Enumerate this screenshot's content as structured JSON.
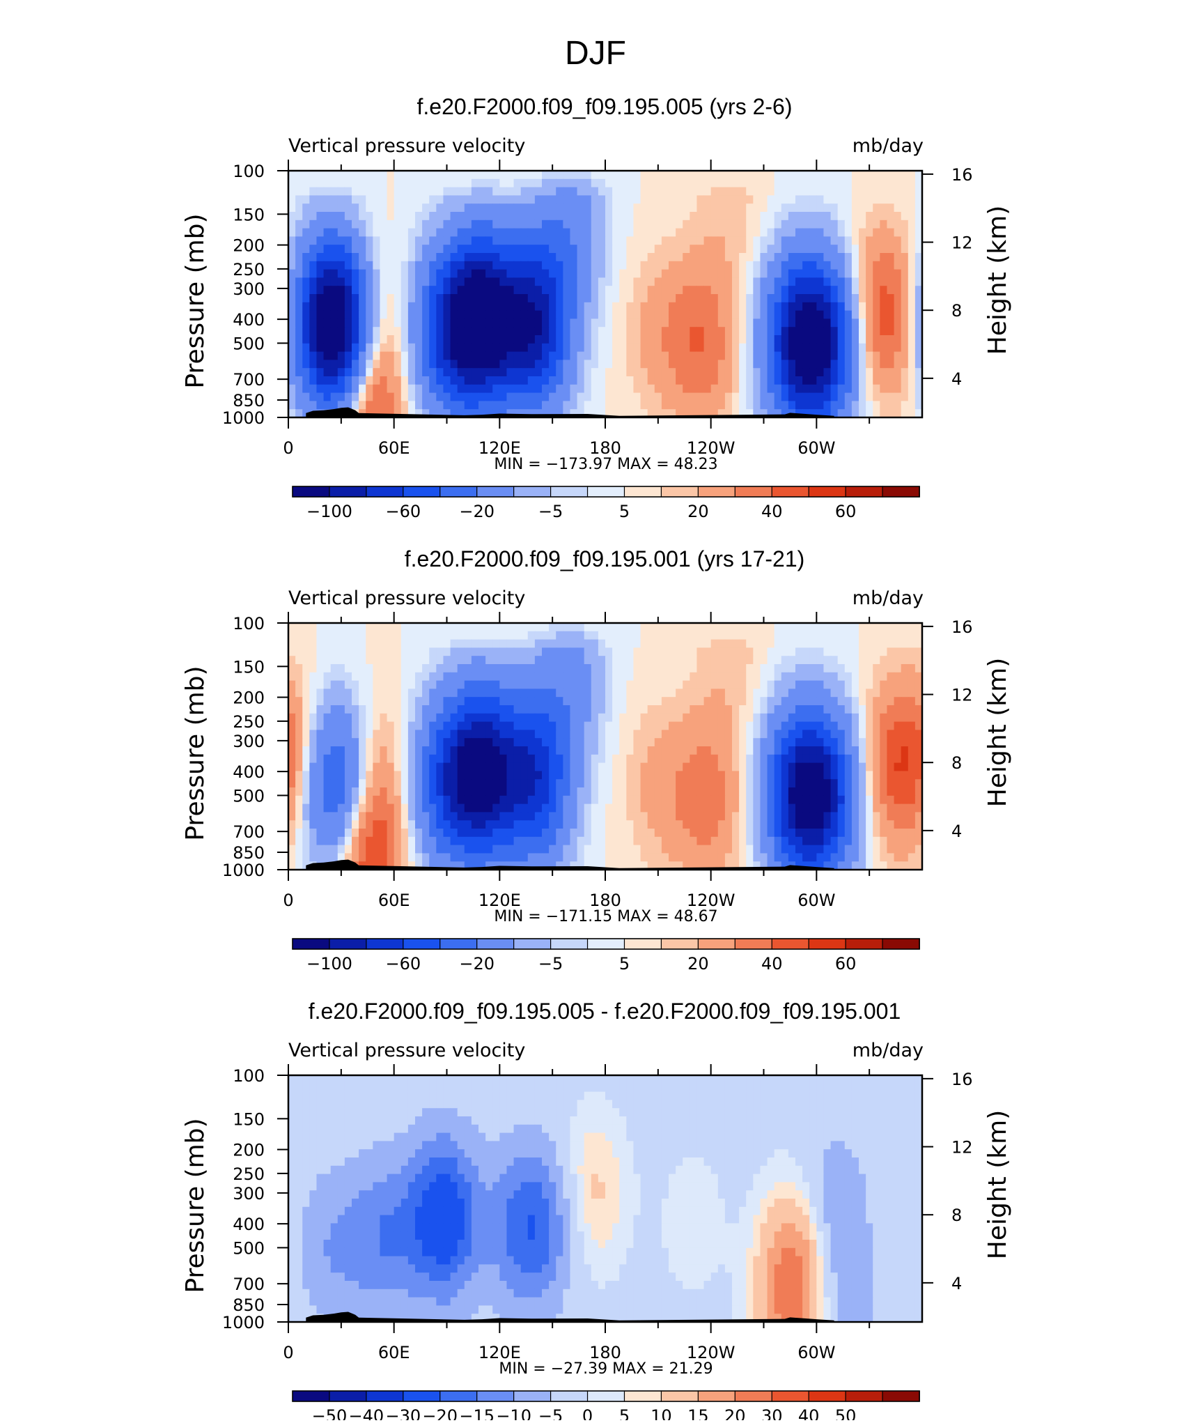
{
  "page_title": "DJF",
  "colormap_abs": [
    "#0a0a80",
    "#0b1ea8",
    "#0e36d2",
    "#1a52ee",
    "#3c6ef0",
    "#6a8ef4",
    "#9ab2f7",
    "#c6d7fa",
    "#e3eefc",
    "#fde6d2",
    "#fbc6a7",
    "#f7a27c",
    "#f07c56",
    "#ea5630",
    "#dc3614",
    "#b81e0a",
    "#8a0a04"
  ],
  "colormap_diff": [
    "#0a0a80",
    "#0b1ea8",
    "#0e36d2",
    "#1a52ee",
    "#3c6ef0",
    "#6a8ef4",
    "#9ab2f7",
    "#c6d7fa",
    "#dde9fb",
    "#fde6d2",
    "#fbc6a7",
    "#f7a27c",
    "#f07c56",
    "#ea5630",
    "#dc3614",
    "#b81e0a",
    "#8a0a04"
  ],
  "chart_data": [
    {
      "type": "heatmap",
      "title": "f.e20.F2000.f09_f09.195.005 (yrs 2-6)",
      "left_label": "Vertical pressure velocity",
      "right_label": "mb/day",
      "ylabel": "Pressure (mb)",
      "ylabel_right": "Height (km)",
      "x_ticks": [
        "0",
        "60E",
        "120E",
        "180",
        "120W",
        "60W"
      ],
      "y_ticks": [
        "100",
        "150",
        "200",
        "250",
        "300",
        "400",
        "500",
        "700",
        "850",
        "1000"
      ],
      "y_ticks_right": [
        "16",
        "12",
        "8",
        "4"
      ],
      "min_max": "MIN = −173.97   MAX =   48.23",
      "colorbar_labels": [
        "−100",
        "−60",
        "−20",
        "−5",
        "5",
        "20",
        "40",
        "60"
      ],
      "features": [
        {
          "lon": 30,
          "p": 450,
          "v": -80
        },
        {
          "lon": 23,
          "p": 400,
          "v": -95
        },
        {
          "lon": 45,
          "p": 400,
          "v": 22
        },
        {
          "lon": 45,
          "p": 900,
          "v": 40
        },
        {
          "lon": 110,
          "p": 400,
          "v": -140
        },
        {
          "lon": 140,
          "p": 420,
          "v": -110
        },
        {
          "lon": 90,
          "p": 450,
          "v": -70
        },
        {
          "lon": 235,
          "p": 500,
          "v": 28
        },
        {
          "lon": 210,
          "p": 450,
          "v": 12
        },
        {
          "lon": 290,
          "p": 500,
          "v": -100
        },
        {
          "lon": 305,
          "p": 500,
          "v": -80
        },
        {
          "lon": 337,
          "p": 380,
          "v": 38
        },
        {
          "lon": 160,
          "p": 170,
          "v": -30
        },
        {
          "lon": 250,
          "p": 140,
          "v": 8
        }
      ]
    },
    {
      "type": "heatmap",
      "title": "f.e20.F2000.f09_f09.195.001 (yrs 17-21)",
      "left_label": "Vertical pressure velocity",
      "right_label": "mb/day",
      "ylabel": "Pressure (mb)",
      "ylabel_right": "Height (km)",
      "x_ticks": [
        "0",
        "60E",
        "120E",
        "180",
        "120W",
        "60W"
      ],
      "y_ticks": [
        "100",
        "150",
        "200",
        "250",
        "300",
        "400",
        "500",
        "700",
        "850",
        "1000"
      ],
      "y_ticks_right": [
        "16",
        "12",
        "8",
        "4"
      ],
      "min_max": "MIN = −171.15   MAX =   48.67",
      "colorbar_labels": [
        "−100",
        "−60",
        "−20",
        "−5",
        "5",
        "20",
        "40",
        "60"
      ],
      "features": [
        {
          "lon": 28,
          "p": 450,
          "v": -75
        },
        {
          "lon": 45,
          "p": 420,
          "v": 24
        },
        {
          "lon": 45,
          "p": 900,
          "v": 42
        },
        {
          "lon": 110,
          "p": 400,
          "v": -120
        },
        {
          "lon": 140,
          "p": 430,
          "v": -90
        },
        {
          "lon": 90,
          "p": 450,
          "v": -60
        },
        {
          "lon": 238,
          "p": 520,
          "v": 26
        },
        {
          "lon": 210,
          "p": 450,
          "v": 12
        },
        {
          "lon": 290,
          "p": 500,
          "v": -95
        },
        {
          "lon": 305,
          "p": 500,
          "v": -75
        },
        {
          "lon": 345,
          "p": 380,
          "v": 34
        },
        {
          "lon": 5,
          "p": 350,
          "v": 20
        },
        {
          "lon": 160,
          "p": 170,
          "v": -25
        },
        {
          "lon": 250,
          "p": 140,
          "v": 8
        }
      ]
    },
    {
      "type": "heatmap",
      "title": "f.e20.F2000.f09_f09.195.005 - f.e20.F2000.f09_f09.195.001",
      "left_label": "Vertical pressure velocity",
      "right_label": "mb/day",
      "ylabel": "Pressure (mb)",
      "ylabel_right": "Height (km)",
      "x_ticks": [
        "0",
        "60E",
        "120E",
        "180",
        "120W",
        "60W"
      ],
      "y_ticks": [
        "100",
        "150",
        "200",
        "250",
        "300",
        "400",
        "500",
        "700",
        "850",
        "1000"
      ],
      "y_ticks_right": [
        "16",
        "12",
        "8",
        "4"
      ],
      "min_max": "MIN = −27.39   MAX =   21.29",
      "colorbar_labels": [
        "−50",
        "−40",
        "−30",
        "−20",
        "−15",
        "−10",
        "−5",
        "0",
        "5",
        "10",
        "15",
        "20",
        "30",
        "40",
        "50"
      ],
      "features": [
        {
          "lon": 88,
          "p": 380,
          "v": -24
        },
        {
          "lon": 55,
          "p": 450,
          "v": -12
        },
        {
          "lon": 130,
          "p": 420,
          "v": -10
        },
        {
          "lon": 145,
          "p": 400,
          "v": -12
        },
        {
          "lon": 25,
          "p": 500,
          "v": -8
        },
        {
          "lon": 285,
          "p": 800,
          "v": 16
        },
        {
          "lon": 290,
          "p": 500,
          "v": 8
        },
        {
          "lon": 172,
          "p": 300,
          "v": 8
        },
        {
          "lon": 310,
          "p": 350,
          "v": -8
        },
        {
          "lon": 230,
          "p": 400,
          "v": 3
        },
        {
          "lon": 330,
          "p": 600,
          "v": 3
        },
        {
          "lon": 320,
          "p": 750,
          "v": -8
        }
      ]
    }
  ]
}
